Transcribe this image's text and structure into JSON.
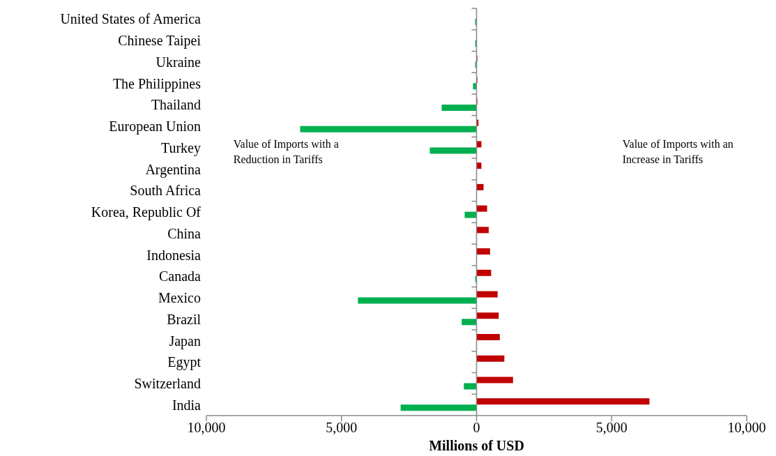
{
  "chart_data": {
    "type": "bar",
    "orientation": "horizontal",
    "xlabel": "Millions of USD",
    "categories": [
      "United States of America",
      "Chinese Taipei",
      "Ukraine",
      "The Philippines",
      "Thailand",
      "European Union",
      "Turkey",
      "Argentina",
      "South Africa",
      "Korea, Republic Of",
      "China",
      "Indonesia",
      "Canada",
      "Mexico",
      "Brazil",
      "Japan",
      "Egypt",
      "Switzerland",
      "India"
    ],
    "series": [
      {
        "color": "#c00000",
        "values": [
          0,
          0,
          30,
          30,
          30,
          70,
          180,
          180,
          260,
          390,
          450,
          500,
          540,
          780,
          820,
          860,
          1030,
          1350,
          6400
        ]
      },
      {
        "color": "#00b050",
        "values": [
          -50,
          -50,
          -50,
          -130,
          -1290,
          -6530,
          -1730,
          0,
          0,
          -440,
          0,
          0,
          -50,
          -4390,
          -550,
          0,
          0,
          -470,
          -2810
        ]
      }
    ],
    "xlim": [
      -10000,
      10000
    ],
    "xticks": [
      {
        "value": -10000,
        "label": "10,000"
      },
      {
        "value": -5000,
        "label": "5,000"
      },
      0,
      {
        "value": 5000,
        "label": "5,000"
      },
      {
        "value": 10000,
        "label": "10,000"
      }
    ],
    "annotations": [
      "Value of Imports with a Reduction in Tariffs",
      "Value of Imports with an Increase in Tariffs"
    ]
  }
}
